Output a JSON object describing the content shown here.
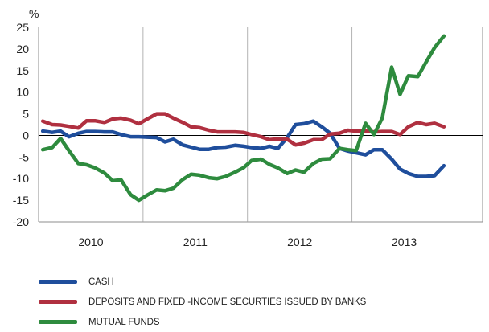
{
  "chart_data": {
    "type": "line",
    "y_unit_label": "%",
    "ylim": [
      -20,
      25
    ],
    "y_ticks": [
      25,
      20,
      15,
      10,
      5,
      0,
      -5,
      -10,
      -15,
      -20
    ],
    "x_range": [
      2009.5,
      2013.75
    ],
    "categories": [
      "2010",
      "2011",
      "2012",
      "2013"
    ],
    "grid": "vertical separators between years",
    "legend_position": "bottom-left",
    "series": [
      {
        "name": "CASH",
        "color": "#1f4e9c",
        "points": [
          [
            2009.54,
            1.0
          ],
          [
            2009.63,
            0.7
          ],
          [
            2009.71,
            1.0
          ],
          [
            2009.79,
            -0.3
          ],
          [
            2009.88,
            0.5
          ],
          [
            2009.96,
            0.9
          ],
          [
            2010.04,
            0.9
          ],
          [
            2010.13,
            0.8
          ],
          [
            2010.21,
            0.8
          ],
          [
            2010.29,
            0.2
          ],
          [
            2010.38,
            -0.3
          ],
          [
            2010.46,
            -0.3
          ],
          [
            2010.54,
            -0.4
          ],
          [
            2010.63,
            -0.5
          ],
          [
            2010.71,
            -1.5
          ],
          [
            2010.79,
            -0.9
          ],
          [
            2010.88,
            -2.2
          ],
          [
            2010.96,
            -2.7
          ],
          [
            2011.04,
            -3.2
          ],
          [
            2011.13,
            -3.2
          ],
          [
            2011.21,
            -2.8
          ],
          [
            2011.29,
            -2.7
          ],
          [
            2011.38,
            -2.3
          ],
          [
            2011.46,
            -2.5
          ],
          [
            2011.54,
            -2.8
          ],
          [
            2011.63,
            -3.0
          ],
          [
            2011.71,
            -2.5
          ],
          [
            2011.79,
            -3.0
          ],
          [
            2011.88,
            -0.5
          ],
          [
            2011.96,
            2.5
          ],
          [
            2012.04,
            2.7
          ],
          [
            2012.13,
            3.3
          ],
          [
            2012.21,
            2.0
          ],
          [
            2012.29,
            0.5
          ],
          [
            2012.38,
            -3.0
          ],
          [
            2012.46,
            -3.6
          ],
          [
            2012.54,
            -4.0
          ],
          [
            2012.63,
            -4.5
          ],
          [
            2012.71,
            -3.3
          ],
          [
            2012.79,
            -3.3
          ],
          [
            2012.88,
            -5.5
          ],
          [
            2012.96,
            -7.8
          ],
          [
            2013.04,
            -8.8
          ],
          [
            2013.13,
            -9.5
          ],
          [
            2013.21,
            -9.5
          ],
          [
            2013.29,
            -9.3
          ],
          [
            2013.38,
            -7.0
          ]
        ]
      },
      {
        "name": "DEPOSITS AND FIXED -INCOME SECURTIES ISSUED BY BANKS",
        "color": "#b03040",
        "points": [
          [
            2009.54,
            3.3
          ],
          [
            2009.63,
            2.5
          ],
          [
            2009.71,
            2.4
          ],
          [
            2009.79,
            2.1
          ],
          [
            2009.88,
            1.7
          ],
          [
            2009.96,
            3.4
          ],
          [
            2010.04,
            3.4
          ],
          [
            2010.13,
            3.0
          ],
          [
            2010.21,
            3.8
          ],
          [
            2010.29,
            4.0
          ],
          [
            2010.38,
            3.5
          ],
          [
            2010.46,
            2.7
          ],
          [
            2010.54,
            3.8
          ],
          [
            2010.63,
            5.0
          ],
          [
            2010.71,
            5.0
          ],
          [
            2010.79,
            4.0
          ],
          [
            2010.88,
            3.0
          ],
          [
            2010.96,
            2.0
          ],
          [
            2011.04,
            1.8
          ],
          [
            2011.13,
            1.2
          ],
          [
            2011.21,
            0.8
          ],
          [
            2011.29,
            0.8
          ],
          [
            2011.38,
            0.8
          ],
          [
            2011.46,
            0.7
          ],
          [
            2011.54,
            0.2
          ],
          [
            2011.63,
            -0.3
          ],
          [
            2011.71,
            -1.0
          ],
          [
            2011.79,
            -0.8
          ],
          [
            2011.88,
            -0.9
          ],
          [
            2011.96,
            -2.2
          ],
          [
            2012.04,
            -1.8
          ],
          [
            2012.13,
            -1.0
          ],
          [
            2012.21,
            -1.0
          ],
          [
            2012.29,
            0.3
          ],
          [
            2012.38,
            0.5
          ],
          [
            2012.46,
            1.2
          ],
          [
            2012.54,
            1.0
          ],
          [
            2012.63,
            1.0
          ],
          [
            2012.71,
            0.8
          ],
          [
            2012.79,
            0.9
          ],
          [
            2012.88,
            0.9
          ],
          [
            2012.96,
            0.2
          ],
          [
            2013.04,
            2.0
          ],
          [
            2013.13,
            3.0
          ],
          [
            2013.21,
            2.5
          ],
          [
            2013.29,
            2.8
          ],
          [
            2013.38,
            2.0
          ]
        ]
      },
      {
        "name": "MUTUAL FUNDS",
        "color": "#2e8b3e",
        "points": [
          [
            2009.54,
            -3.3
          ],
          [
            2009.63,
            -2.8
          ],
          [
            2009.71,
            -0.7
          ],
          [
            2009.79,
            -3.5
          ],
          [
            2009.88,
            -6.5
          ],
          [
            2009.96,
            -6.8
          ],
          [
            2010.04,
            -7.5
          ],
          [
            2010.13,
            -8.7
          ],
          [
            2010.21,
            -10.5
          ],
          [
            2010.29,
            -10.3
          ],
          [
            2010.38,
            -13.7
          ],
          [
            2010.46,
            -15.0
          ],
          [
            2010.54,
            -13.8
          ],
          [
            2010.63,
            -12.6
          ],
          [
            2010.71,
            -12.8
          ],
          [
            2010.79,
            -12.2
          ],
          [
            2010.88,
            -10.2
          ],
          [
            2010.96,
            -9.0
          ],
          [
            2011.04,
            -9.2
          ],
          [
            2011.13,
            -9.8
          ],
          [
            2011.21,
            -10.0
          ],
          [
            2011.29,
            -9.5
          ],
          [
            2011.38,
            -8.5
          ],
          [
            2011.46,
            -7.5
          ],
          [
            2011.54,
            -5.8
          ],
          [
            2011.63,
            -5.5
          ],
          [
            2011.71,
            -6.7
          ],
          [
            2011.79,
            -7.5
          ],
          [
            2011.88,
            -8.8
          ],
          [
            2011.96,
            -8.0
          ],
          [
            2012.04,
            -8.5
          ],
          [
            2012.13,
            -6.5
          ],
          [
            2012.21,
            -5.5
          ],
          [
            2012.29,
            -5.4
          ],
          [
            2012.38,
            -3.0
          ],
          [
            2012.46,
            -3.3
          ],
          [
            2012.54,
            -3.5
          ],
          [
            2012.63,
            2.8
          ],
          [
            2012.71,
            0.2
          ],
          [
            2012.79,
            4.0
          ],
          [
            2012.88,
            15.8
          ],
          [
            2012.96,
            9.5
          ],
          [
            2013.04,
            13.8
          ],
          [
            2013.13,
            13.6
          ],
          [
            2013.21,
            17.0
          ],
          [
            2013.29,
            20.3
          ],
          [
            2013.38,
            23.0
          ]
        ]
      }
    ]
  }
}
